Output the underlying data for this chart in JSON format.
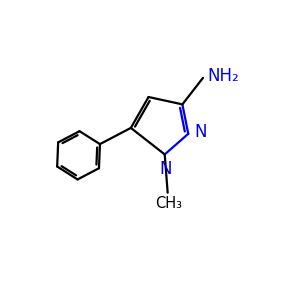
{
  "background": "#ffffff",
  "bond_color": "#000000",
  "n_color": "#0000ee",
  "label_n1": "N",
  "label_n2": "N",
  "label_nh2": "NH₂",
  "label_ch3": "CH₃",
  "figsize": [
    3.0,
    3.0
  ],
  "dpi": 100,
  "xlim": [
    0,
    10
  ],
  "ylim": [
    0,
    10
  ]
}
